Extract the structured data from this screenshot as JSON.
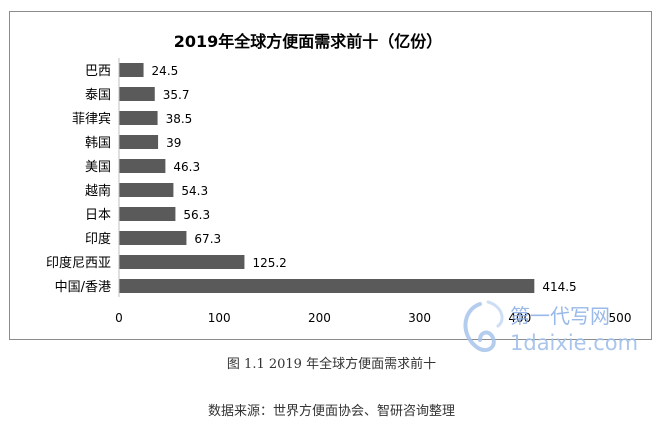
{
  "chart_data": {
    "type": "bar",
    "orientation": "horizontal",
    "title": "2019年全球方便面需求前十（亿份）",
    "categories": [
      "巴西",
      "泰国",
      "菲律宾",
      "韩国",
      "美国",
      "越南",
      "日本",
      "印度",
      "印度尼西亚",
      "中国/香港"
    ],
    "values": [
      24.5,
      35.7,
      38.5,
      39,
      46.3,
      54.3,
      56.3,
      67.3,
      125.2,
      414.5
    ],
    "value_labels": [
      "24.5",
      "35.7",
      "38.5",
      "39",
      "46.3",
      "54.3",
      "56.3",
      "67.3",
      "125.2",
      "414.5"
    ],
    "xlim": [
      0,
      500
    ],
    "xticks": [
      "0",
      "100",
      "200",
      "300",
      "400",
      "500"
    ],
    "grid": false,
    "legend": "none",
    "bar_color": "#5a5a5a"
  },
  "figure_caption": "图 1.1 2019 年全球方便面需求前十",
  "source_caption": "数据来源：世界方便面协会、智研咨询整理",
  "watermark": {
    "brand": "第一代写网",
    "url": "1daixie.com"
  }
}
